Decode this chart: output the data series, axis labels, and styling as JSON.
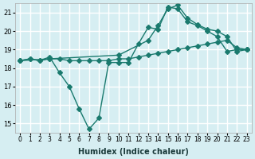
{
  "bg_color": "#d6eef2",
  "grid_color": "#ffffff",
  "line_color": "#1a7a6e",
  "line1_x": [
    0,
    1,
    2,
    3,
    4,
    5,
    6,
    7,
    8,
    9,
    10,
    11,
    12,
    13,
    14,
    15,
    16,
    17,
    18,
    19,
    20,
    21,
    22,
    23
  ],
  "line1_y": [
    18.4,
    18.5,
    18.4,
    18.5,
    18.5,
    18.4,
    18.4,
    18.4,
    18.4,
    18.4,
    18.5,
    18.5,
    18.6,
    18.7,
    18.8,
    18.9,
    19.0,
    19.1,
    19.2,
    19.3,
    19.4,
    19.5,
    19.1,
    19.0
  ],
  "line2_x": [
    0,
    1,
    2,
    3,
    4,
    5,
    6,
    7,
    8,
    9,
    10,
    11,
    12,
    13,
    14,
    15,
    16,
    17,
    18,
    19,
    20,
    21,
    22,
    23
  ],
  "line2_y": [
    18.4,
    18.5,
    18.4,
    18.6,
    17.75,
    17.0,
    15.8,
    14.7,
    15.3,
    18.3,
    18.3,
    18.3,
    19.3,
    20.2,
    20.1,
    21.3,
    21.2,
    20.5,
    20.3,
    20.0,
    19.7,
    18.9,
    19.0,
    19.0
  ],
  "line3_x": [
    0,
    3,
    10,
    13,
    14,
    15,
    16,
    17,
    18,
    19,
    20,
    21,
    22,
    23
  ],
  "line3_y": [
    18.4,
    18.5,
    18.7,
    19.5,
    20.3,
    21.2,
    21.4,
    20.7,
    20.35,
    20.1,
    20.0,
    19.7,
    18.9,
    19.0
  ],
  "xlabel": "Humidex (Indice chaleur)",
  "xlim": [
    -0.5,
    23.5
  ],
  "ylim": [
    14.5,
    21.5
  ],
  "yticks": [
    15,
    16,
    17,
    18,
    19,
    20,
    21
  ],
  "xticks": [
    0,
    1,
    2,
    3,
    4,
    5,
    6,
    7,
    8,
    9,
    10,
    11,
    12,
    13,
    14,
    15,
    16,
    17,
    18,
    19,
    20,
    21,
    22,
    23
  ],
  "xtick_labels": [
    "0",
    "1",
    "2",
    "3",
    "4",
    "5",
    "6",
    "7",
    "8",
    "9",
    "10",
    "11",
    "12",
    "13",
    "14",
    "15",
    "16",
    "17",
    "18",
    "19",
    "20",
    "21",
    "22",
    "23"
  ]
}
